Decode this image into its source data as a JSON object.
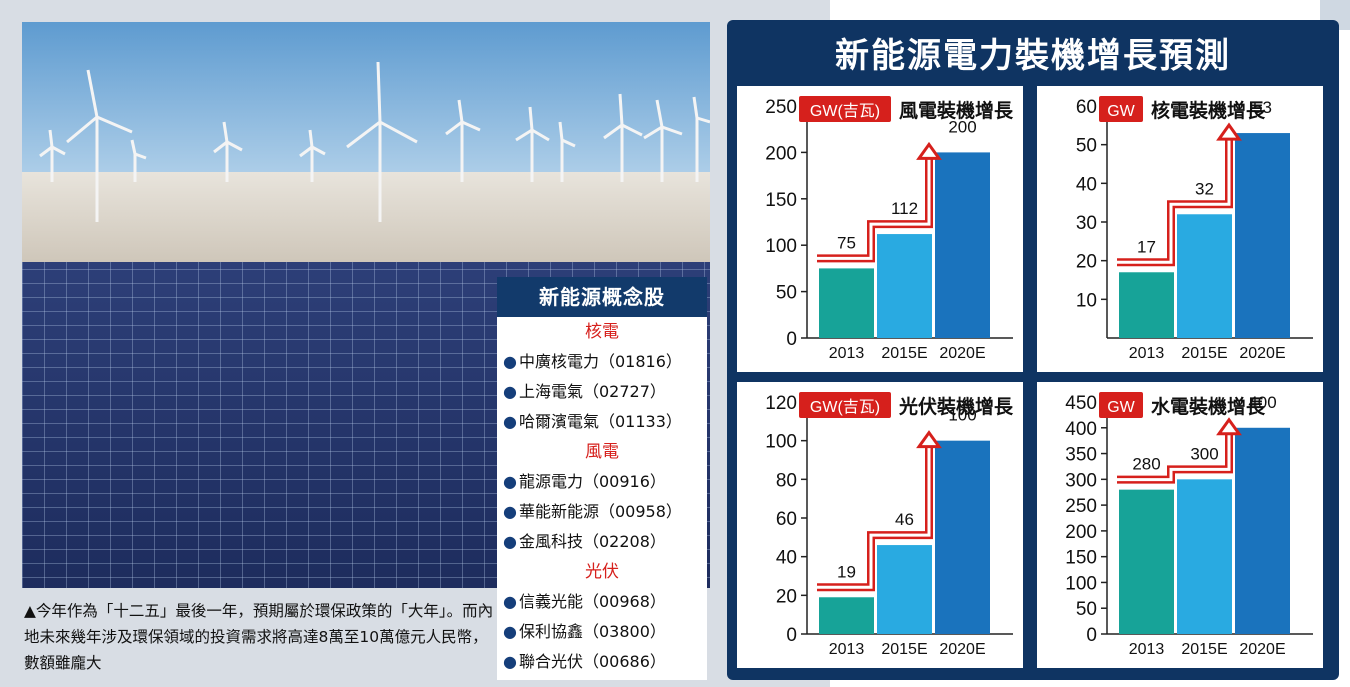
{
  "main_title": "新能源電力裝機增長預測",
  "caption": "▲今年作為「十二五」最後一年，預期屬於環保政策的「大年」。而內地未來幾年涉及環保領域的投資需求將高達8萬至10萬億元人民幣，數額雖龐大",
  "stock_box": {
    "title": "新能源概念股",
    "categories": [
      {
        "name": "核電",
        "items": [
          "中廣核電力（01816）",
          "上海電氣（02727）",
          "哈爾濱電氣（01133）"
        ]
      },
      {
        "name": "風電",
        "items": [
          "龍源電力（00916）",
          "華能新能源（00958）",
          "金風科技（02208）"
        ]
      },
      {
        "name": "光伏",
        "items": [
          "信義光能（00968）",
          "保利協鑫（03800）",
          "聯合光伏（00686）"
        ]
      }
    ]
  },
  "colors": {
    "bar1": "#17a398",
    "bar2": "#29aae1",
    "bar3": "#1a73bd",
    "arrow": "#d6201c",
    "navy": "#0f3462"
  },
  "chart_data": [
    {
      "type": "bar",
      "unit_tag": "GW(吉瓦)",
      "title": "風電裝機增長",
      "categories": [
        "2013",
        "2015E",
        "2020E"
      ],
      "values": [
        75,
        112,
        200
      ],
      "ylim": [
        0,
        250
      ],
      "yticks": [
        0,
        50,
        100,
        150,
        200,
        250
      ]
    },
    {
      "type": "bar",
      "unit_tag": "GW",
      "title": "核電裝機增長",
      "categories": [
        "2013",
        "2015E",
        "2020E"
      ],
      "values": [
        17,
        32,
        53
      ],
      "ylim": [
        0,
        60
      ],
      "yticks": [
        10,
        20,
        30,
        40,
        50,
        60
      ]
    },
    {
      "type": "bar",
      "unit_tag": "GW(吉瓦)",
      "title": "光伏裝機增長",
      "categories": [
        "2013",
        "2015E",
        "2020E"
      ],
      "values": [
        19,
        46,
        100
      ],
      "ylim": [
        0,
        120
      ],
      "yticks": [
        0,
        20,
        40,
        60,
        80,
        100,
        120
      ]
    },
    {
      "type": "bar",
      "unit_tag": "GW",
      "title": "水電裝機增長",
      "categories": [
        "2013",
        "2015E",
        "2020E"
      ],
      "values": [
        280,
        300,
        400
      ],
      "ylim": [
        0,
        450
      ],
      "yticks": [
        0,
        50,
        100,
        150,
        200,
        250,
        300,
        350,
        400,
        450
      ]
    }
  ]
}
